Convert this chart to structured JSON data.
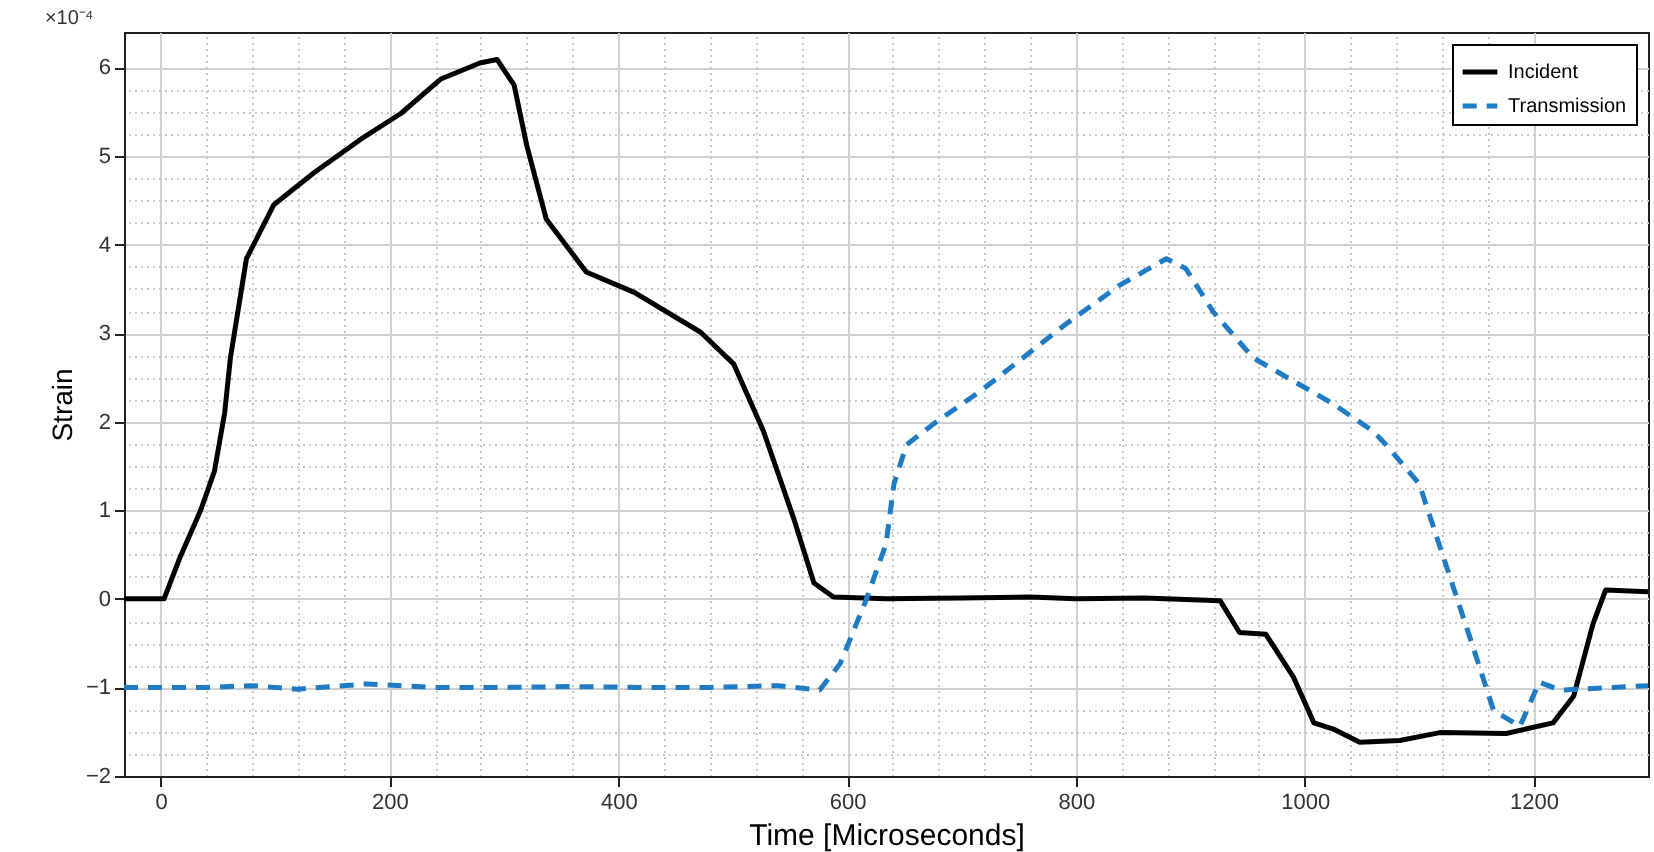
{
  "chart_data": {
    "type": "line",
    "xlabel": "Time [Microseconds]",
    "ylabel": "Strain",
    "annotations": [
      "×10⁻⁴"
    ],
    "xlim": [
      -32,
      1300
    ],
    "xticks": [
      0,
      200,
      400,
      600,
      800,
      1000,
      1200
    ],
    "ylim": [
      -2,
      6.4
    ],
    "yticks": [
      -2,
      -1,
      0,
      1,
      2,
      3,
      4,
      5,
      6
    ],
    "grid": true,
    "legend": "top right",
    "series": [
      {
        "name": "Incident",
        "color": "#000000",
        "line_style": "solid",
        "x": [
          -32,
          3,
          17,
          35,
          47,
          56,
          61,
          75,
          99,
          134,
          175,
          210,
          245,
          279,
          294,
          309,
          320,
          337,
          372,
          414,
          472,
          501,
          527,
          553,
          571,
          588,
          634,
          700,
          760,
          800,
          860,
          926,
          943,
          966,
          990,
          1008,
          1025,
          1048,
          1083,
          1118,
          1176,
          1217,
          1235,
          1252,
          1263,
          1300
        ],
        "values": [
          0,
          0,
          0.47,
          1.0,
          1.44,
          2.1,
          2.72,
          3.84,
          4.45,
          4.81,
          5.19,
          5.48,
          5.87,
          6.05,
          6.09,
          5.8,
          5.12,
          4.29,
          3.69,
          3.46,
          3.01,
          2.65,
          1.89,
          0.92,
          0.18,
          0.02,
          0,
          0.01,
          0.02,
          0,
          0.01,
          -0.02,
          -0.38,
          -0.4,
          -0.88,
          -1.4,
          -1.47,
          -1.62,
          -1.6,
          -1.51,
          -1.52,
          -1.4,
          -1.1,
          -0.28,
          0.1,
          0.08
        ]
      },
      {
        "name": "Transmission",
        "color": "#1f7bc4",
        "line_style": "dashed",
        "x": [
          -32,
          40,
          80,
          120,
          180,
          240,
          300,
          360,
          420,
          480,
          540,
          576,
          594,
          617,
          634,
          641,
          652,
          675,
          716,
          791,
          838,
          879,
          896,
          920,
          955,
          1025,
          1060,
          1071,
          1100,
          1123,
          1148,
          1165,
          1188,
          1205,
          1223,
          1300
        ],
        "values": [
          -1,
          -1,
          -0.98,
          -1.02,
          -0.96,
          -1,
          -1,
          -0.99,
          -1,
          -1,
          -0.98,
          -1.03,
          -0.73,
          0,
          0.62,
          1.3,
          1.74,
          1.97,
          2.34,
          3.1,
          3.54,
          3.84,
          3.73,
          3.24,
          2.72,
          2.2,
          1.89,
          1.74,
          1.3,
          0.4,
          -0.58,
          -1.26,
          -1.44,
          -0.94,
          -1.03,
          -0.98
        ]
      }
    ]
  }
}
